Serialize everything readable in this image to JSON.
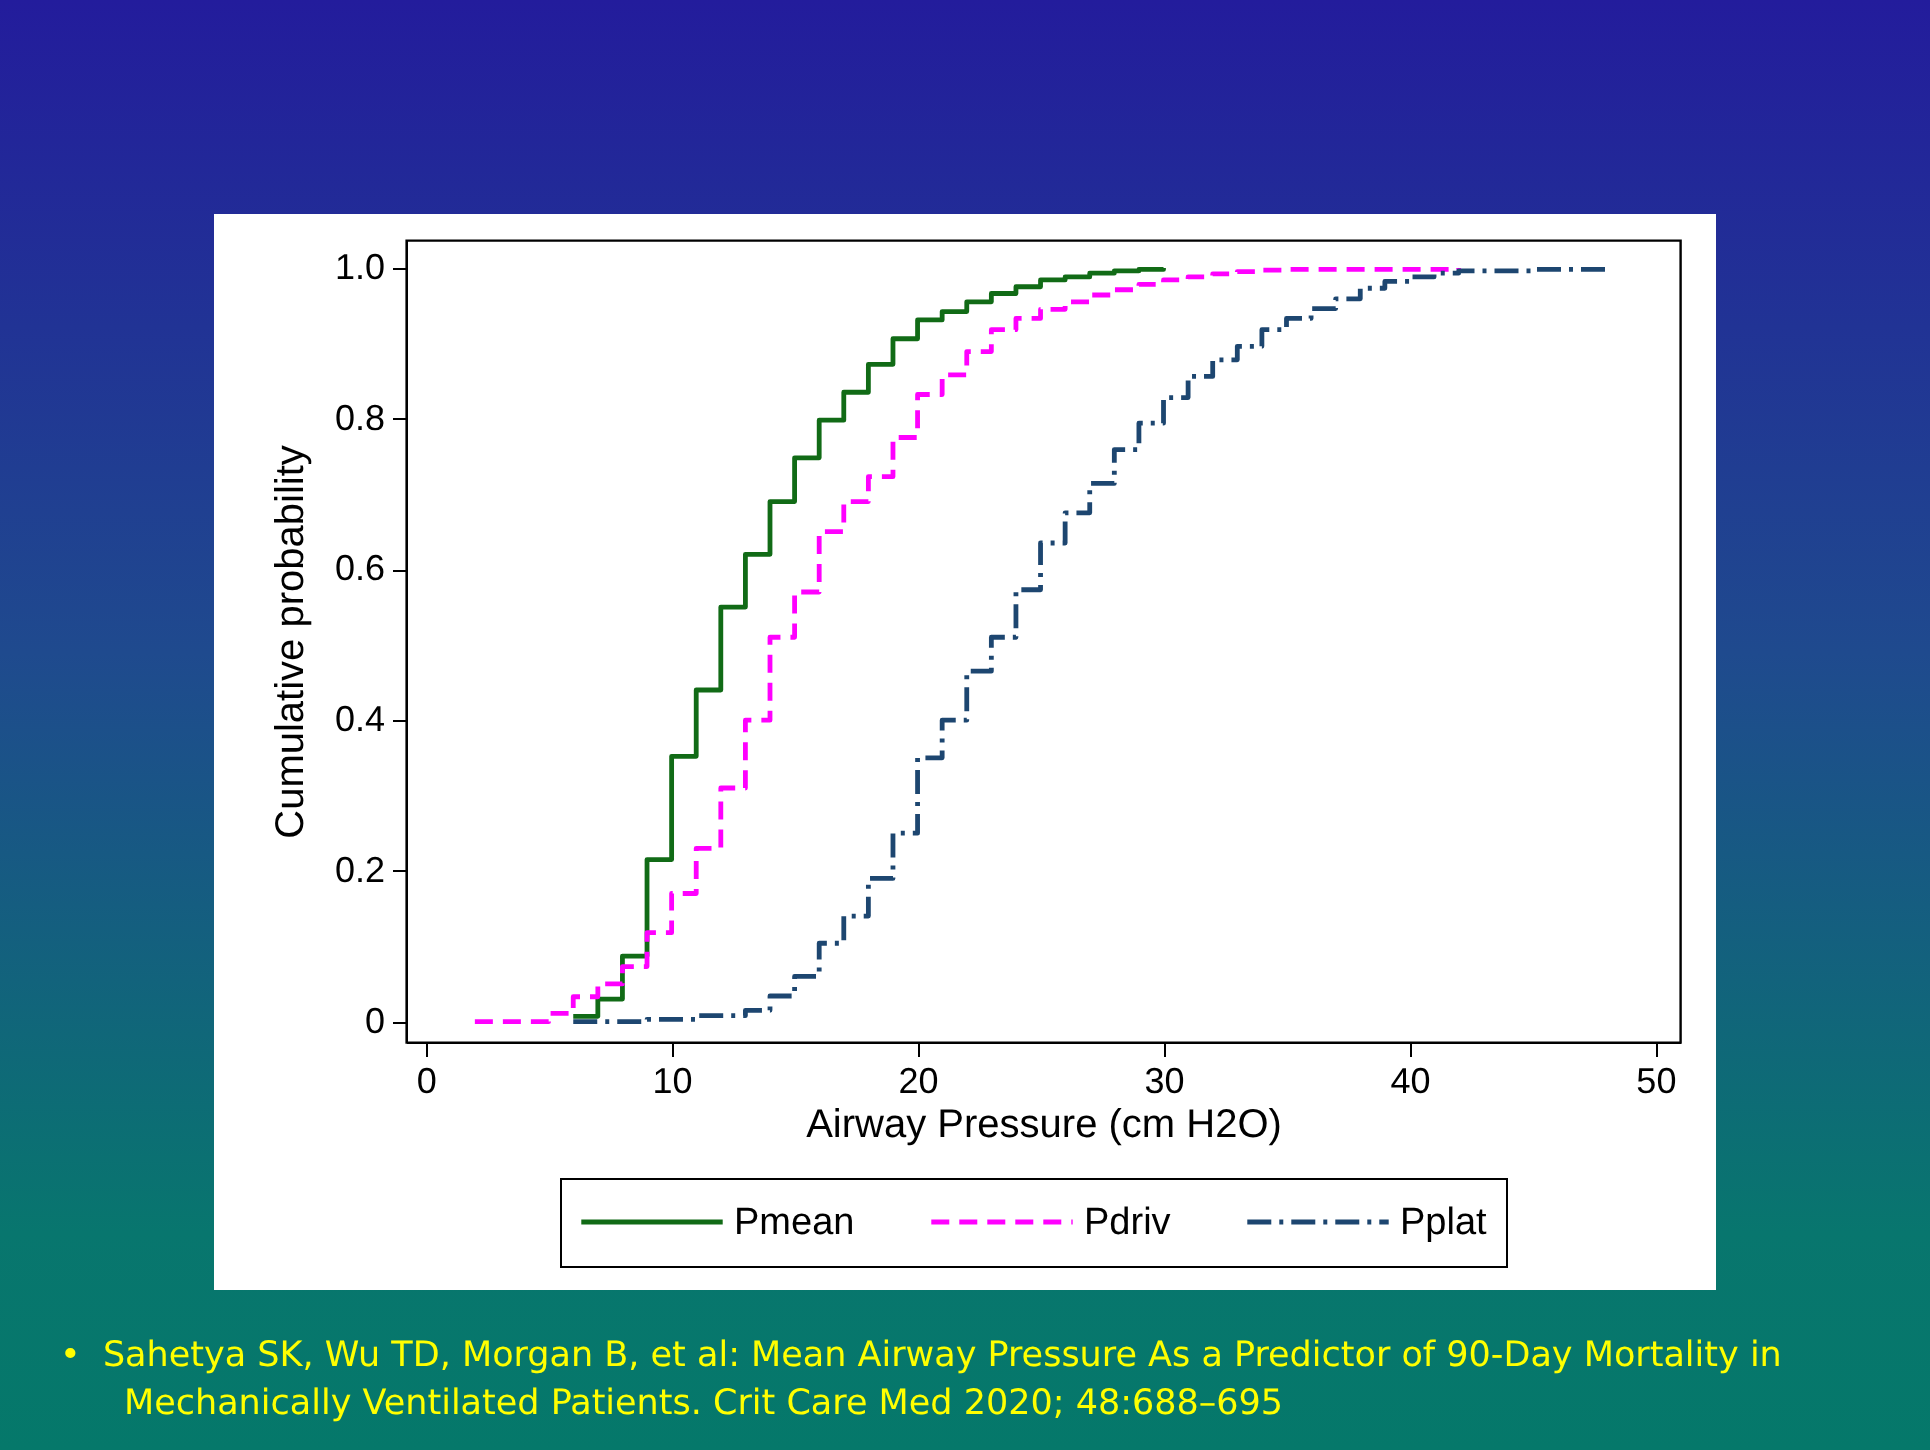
{
  "chart_data": {
    "type": "step",
    "xlabel": "Airway Pressure (cm H2O)",
    "ylabel": "Cumulative probability",
    "xlim": [
      -0.8,
      51
    ],
    "ylim": [
      -0.027,
      1.037
    ],
    "xticks": [
      0,
      10,
      20,
      30,
      40,
      50
    ],
    "yticks": [
      0,
      {
        "value": 0.2,
        "label": "0.2"
      },
      {
        "value": 0.4,
        "label": "0.4"
      },
      {
        "value": 0.6,
        "label": "0.6"
      },
      {
        "value": 0.8,
        "label": "0.8"
      },
      {
        "value": 1,
        "label": "1.0"
      }
    ],
    "grid": false,
    "legend": "bottom",
    "series": [
      {
        "name": "Pmean",
        "color": "#116b16",
        "line_style": "solid",
        "x": [
          6,
          7,
          8,
          9,
          10,
          11,
          12,
          13,
          14,
          15,
          16,
          17,
          18,
          19,
          20,
          21,
          22,
          23,
          24,
          25,
          26,
          27,
          28,
          29,
          30
        ],
        "values": [
          0.007,
          0.03,
          0.087,
          0.215,
          0.352,
          0.44,
          0.55,
          0.62,
          0.69,
          0.748,
          0.798,
          0.835,
          0.872,
          0.906,
          0.931,
          0.942,
          0.955,
          0.966,
          0.975,
          0.984,
          0.988,
          0.993,
          0.996,
          0.998,
          1.0
        ]
      },
      {
        "name": "Pdriv",
        "color": "#ff00ff",
        "line_style": "dashed",
        "x": [
          2,
          5,
          6,
          7,
          8,
          9,
          10,
          11,
          12,
          13,
          14,
          15,
          16,
          17,
          18,
          19,
          20,
          21,
          22,
          23,
          24,
          25,
          26,
          27,
          28,
          29,
          30,
          31,
          32,
          33,
          34,
          35,
          42
        ],
        "values": [
          0,
          0.011,
          0.033,
          0.05,
          0.073,
          0.118,
          0.17,
          0.23,
          0.31,
          0.4,
          0.51,
          0.57,
          0.65,
          0.69,
          0.723,
          0.775,
          0.832,
          0.858,
          0.889,
          0.918,
          0.933,
          0.945,
          0.955,
          0.964,
          0.971,
          0.978,
          0.984,
          0.988,
          0.992,
          0.995,
          0.997,
          0.998,
          1.0
        ]
      },
      {
        "name": "Pplat",
        "color": "#1d4670",
        "line_style": "dashdot",
        "x": [
          6,
          9,
          11,
          13,
          14,
          15,
          16,
          17,
          18,
          19,
          20,
          21,
          22,
          23,
          24,
          25,
          26,
          27,
          28,
          29,
          30,
          31,
          32,
          33,
          34,
          35,
          36,
          37,
          38,
          39,
          40,
          41,
          42,
          45,
          48
        ],
        "values": [
          0,
          0.003,
          0.008,
          0.015,
          0.034,
          0.06,
          0.104,
          0.14,
          0.19,
          0.25,
          0.35,
          0.4,
          0.465,
          0.51,
          0.573,
          0.635,
          0.675,
          0.714,
          0.759,
          0.794,
          0.828,
          0.856,
          0.878,
          0.896,
          0.918,
          0.933,
          0.946,
          0.959,
          0.973,
          0.982,
          0.988,
          0.993,
          0.996,
          0.998,
          1.0
        ]
      }
    ],
    "annotations": [
      "•  Sahetya SK, Wu TD, Morgan B, et al: Mean Airway Pressure As a Predictor of 90-Day Mortality in Mechanically Ventilated Patients. Crit Care Med 2020; 48:688–695"
    ]
  }
}
